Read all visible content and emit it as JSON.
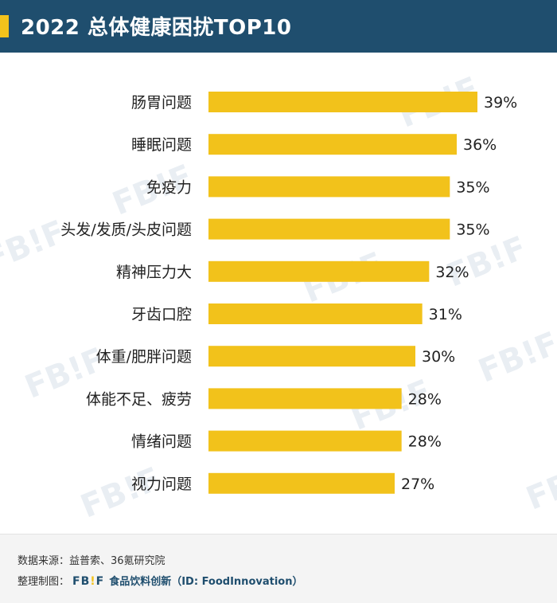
{
  "header": {
    "title": "2022 总体健康困扰TOP10"
  },
  "colors": {
    "header_bg": "#1f4e6e",
    "accent": "#f2c21b",
    "bar": "#f2c21b"
  },
  "watermark": {
    "text": "FB!F"
  },
  "chart_data": {
    "type": "bar",
    "orientation": "horizontal",
    "title": "2022 总体健康困扰TOP10",
    "categories": [
      "肠胃问题",
      "睡眠问题",
      "免疫力",
      "头发/发质/头皮问题",
      "精神压力大",
      "牙齿口腔",
      "体重/肥胖问题",
      "体能不足、疲劳",
      "情绪问题",
      "视力问题"
    ],
    "values": [
      39,
      36,
      35,
      35,
      32,
      31,
      30,
      28,
      28,
      27
    ],
    "data_labels": [
      "39%",
      "36%",
      "35%",
      "35%",
      "32%",
      "31%",
      "30%",
      "28%",
      "28%",
      "27%"
    ],
    "unit": "%",
    "xlim": [
      0,
      39
    ],
    "grid": false,
    "legend": "none"
  },
  "footer": {
    "source_label": "数据来源：",
    "source_value": "益普索、36氪研究院",
    "made_by_label": "整理制图：",
    "logo_text_a": "FB",
    "logo_text_b": "!",
    "logo_text_c": "F",
    "brand_text": "食品饮料创新（ID: FoodInnovation）"
  }
}
